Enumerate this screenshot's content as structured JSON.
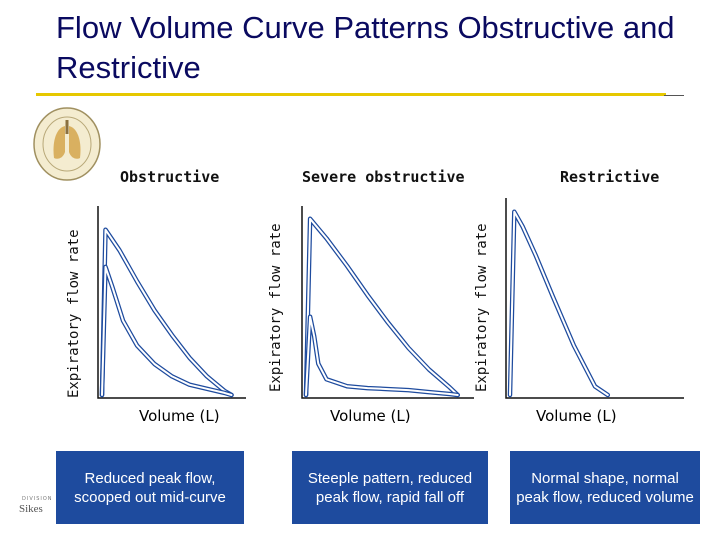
{
  "title": "Flow Volume Curve Patterns Obstructive and Restrictive",
  "footer": {
    "division": "DIVISION",
    "mark": "Sikes"
  },
  "chart_data": [
    {
      "type": "line",
      "title": "Obstructive",
      "xlabel": "Volume (L)",
      "ylabel": "Expiratory flow rate",
      "series": [
        {
          "x": [
            0,
            0.1,
            0.5,
            1.0,
            1.5,
            2.0,
            2.5,
            3.0,
            3.5,
            3.7
          ],
          "y": [
            0,
            8.0,
            7.0,
            5.5,
            4.1,
            2.9,
            1.8,
            0.9,
            0.2,
            0
          ]
        },
        {
          "x": [
            0,
            0.1,
            0.3,
            0.6,
            1.0,
            1.5,
            2.0,
            2.5,
            3.0,
            3.5,
            3.7
          ],
          "y": [
            0,
            6.2,
            5.2,
            3.6,
            2.4,
            1.5,
            0.9,
            0.5,
            0.3,
            0.1,
            0
          ]
        }
      ],
      "xlim": [
        0,
        4
      ],
      "ylim": [
        0,
        9
      ]
    },
    {
      "type": "line",
      "title": "Severe obstructive",
      "xlabel": "Volume (L)",
      "ylabel": "Expiratory flow rate",
      "series": [
        {
          "x": [
            0,
            0.1,
            0.5,
            1.0,
            1.5,
            2.0,
            2.5,
            3.0,
            3.5,
            3.7
          ],
          "y": [
            0,
            9.0,
            8.0,
            6.6,
            5.1,
            3.7,
            2.4,
            1.3,
            0.4,
            0
          ]
        },
        {
          "x": [
            0,
            0.1,
            0.2,
            0.3,
            0.5,
            1.0,
            1.5,
            2.0,
            2.5,
            3.0,
            3.5,
            3.7
          ],
          "y": [
            0,
            4.0,
            3.0,
            1.6,
            0.8,
            0.45,
            0.35,
            0.3,
            0.25,
            0.15,
            0.05,
            0
          ]
        }
      ],
      "xlim": [
        0,
        4
      ],
      "ylim": [
        0,
        9.5
      ]
    },
    {
      "type": "line",
      "title": "Restrictive",
      "xlabel": "Volume (L)",
      "ylabel": "Expiratory flow rate",
      "series": [
        {
          "x": [
            0,
            0.1,
            0.3,
            0.6,
            1.0,
            1.5,
            2.0,
            2.3
          ],
          "y": [
            0,
            8.5,
            7.8,
            6.5,
            4.6,
            2.3,
            0.4,
            0
          ]
        }
      ],
      "xlim": [
        0,
        4
      ],
      "ylim": [
        0,
        9
      ]
    }
  ],
  "captions": [
    "Reduced peak flow, scooped out mid-curve",
    "Steeple pattern, reduced peak flow, rapid fall off",
    "Normal shape, normal peak flow, reduced volume"
  ]
}
